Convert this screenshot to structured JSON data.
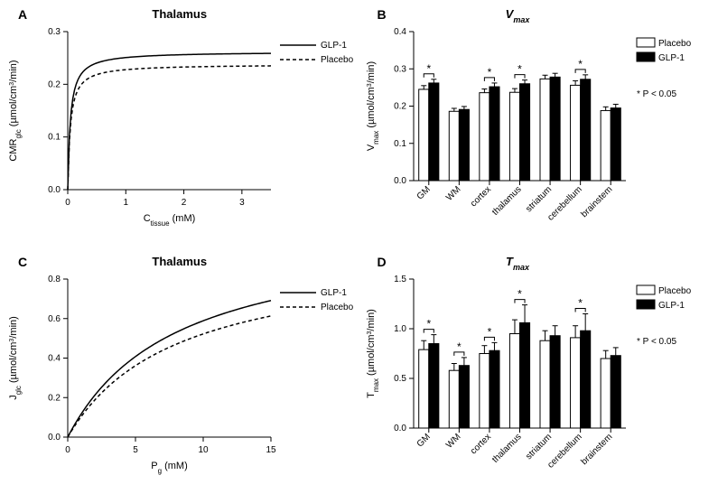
{
  "panelA": {
    "label": "A",
    "title": "Thalamus",
    "xlabel": "Ctissue (mM)",
    "ylabel": "CMRglc (µmol/cm³/min)",
    "xlim": [
      0,
      3.5
    ],
    "xtick_step": 1,
    "ylim": [
      0,
      0.3
    ],
    "ytick_step": 0.1,
    "legend": [
      {
        "label": "GLP-1",
        "dash": false
      },
      {
        "label": "Placebo",
        "dash": true
      }
    ],
    "curves": {
      "glp1": {
        "vmax": 0.262,
        "km": 0.045,
        "dash": false
      },
      "placebo": {
        "vmax": 0.238,
        "km": 0.045,
        "dash": true
      }
    }
  },
  "panelC": {
    "label": "C",
    "title": "Thalamus",
    "xlabel": "Pg (mM)",
    "ylabel": "Jglc (µmol/cm³/min)",
    "xlim": [
      0,
      15
    ],
    "xtick_step": 5,
    "ylim": [
      0,
      0.8
    ],
    "ytick_step": 0.2,
    "legend": [
      {
        "label": "GLP-1",
        "dash": false
      },
      {
        "label": "Placebo",
        "dash": true
      }
    ],
    "curves": {
      "glp1": {
        "vmax": 1.06,
        "km": 8.0,
        "dash": false
      },
      "placebo": {
        "vmax": 0.94,
        "km": 8.0,
        "dash": true
      }
    }
  },
  "panelB": {
    "label": "B",
    "title": "Vmax",
    "title_html": "<tspan font-style='italic'>V</tspan><tspan font-style='italic' baseline-shift='sub' font-size='9'>max</tspan>",
    "ylabel": "Vmax (µmol/cm³/min)",
    "ylim": [
      0,
      0.4
    ],
    "ytick_step": 0.1,
    "categories": [
      "GM",
      "WM",
      "cortex",
      "thalamus",
      "striatum",
      "cerebellum",
      "brainstem"
    ],
    "placebo": [
      0.245,
      0.186,
      0.236,
      0.237,
      0.273,
      0.256,
      0.188
    ],
    "glp1": [
      0.262,
      0.191,
      0.252,
      0.26,
      0.278,
      0.272,
      0.195
    ],
    "err_p": [
      0.01,
      0.008,
      0.01,
      0.01,
      0.01,
      0.012,
      0.01
    ],
    "err_g": [
      0.01,
      0.008,
      0.01,
      0.01,
      0.01,
      0.012,
      0.01
    ],
    "sig": [
      true,
      false,
      true,
      true,
      false,
      true,
      false
    ],
    "legend": [
      {
        "label": "Placebo",
        "fill": "#ffffff"
      },
      {
        "label": "GLP-1",
        "fill": "#000000"
      }
    ],
    "sig_note": "* P < 0.05"
  },
  "panelD": {
    "label": "D",
    "title": "Tmax",
    "title_html": "<tspan font-style='italic'>T</tspan><tspan font-style='italic' baseline-shift='sub' font-size='9'>max</tspan>",
    "ylabel": "Tmax (µmol/cm³/min)",
    "ylim": [
      0,
      1.5
    ],
    "ytick_step": 0.5,
    "categories": [
      "GM",
      "WM",
      "cortex",
      "thalamus",
      "striatum",
      "cerebellum",
      "brainstem"
    ],
    "placebo": [
      0.79,
      0.58,
      0.75,
      0.95,
      0.88,
      0.91,
      0.7
    ],
    "glp1": [
      0.85,
      0.63,
      0.78,
      1.06,
      0.93,
      0.98,
      0.73
    ],
    "err_p": [
      0.09,
      0.07,
      0.08,
      0.14,
      0.1,
      0.12,
      0.08
    ],
    "err_g": [
      0.09,
      0.08,
      0.08,
      0.18,
      0.1,
      0.17,
      0.08
    ],
    "sig": [
      true,
      true,
      true,
      true,
      false,
      true,
      false
    ],
    "legend": [
      {
        "label": "Placebo",
        "fill": "#ffffff"
      },
      {
        "label": "GLP-1",
        "fill": "#000000"
      }
    ],
    "sig_note": "* P < 0.05"
  },
  "colors": {
    "bg": "#ffffff",
    "fg": "#000000"
  }
}
